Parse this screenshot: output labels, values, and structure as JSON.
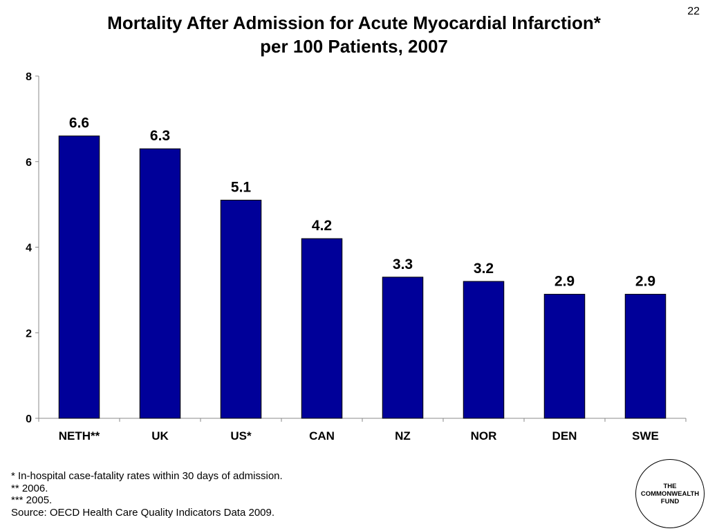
{
  "page_number": "22",
  "chart_data": {
    "type": "bar",
    "title": "Mortality After Admission for Acute Myocardial Infarction*",
    "subtitle": "per 100 Patients, 2007",
    "categories": [
      "NETH**",
      "UK",
      "US*",
      "CAN",
      "NZ",
      "NOR",
      "DEN",
      "SWE"
    ],
    "values": [
      6.6,
      6.3,
      5.1,
      4.2,
      3.3,
      3.2,
      2.9,
      2.9
    ],
    "data_labels": [
      "6.6",
      "6.3",
      "5.1",
      "4.2",
      "3.3",
      "3.2",
      "2.9",
      "2.9"
    ],
    "y_ticks": [
      0,
      2,
      4,
      6,
      8
    ],
    "ylim": [
      0,
      8
    ],
    "bar_color": "#000099",
    "grid": false,
    "legend": "none"
  },
  "footnotes": [
    "* In-hospital case-fatality rates within 30 days of admission.",
    "** 2006.",
    "*** 2005.",
    "Source: OECD Health Care Quality Indicators Data 2009."
  ],
  "logo": {
    "lines": [
      "THE",
      "COMMONWEALTH",
      "FUND"
    ]
  }
}
